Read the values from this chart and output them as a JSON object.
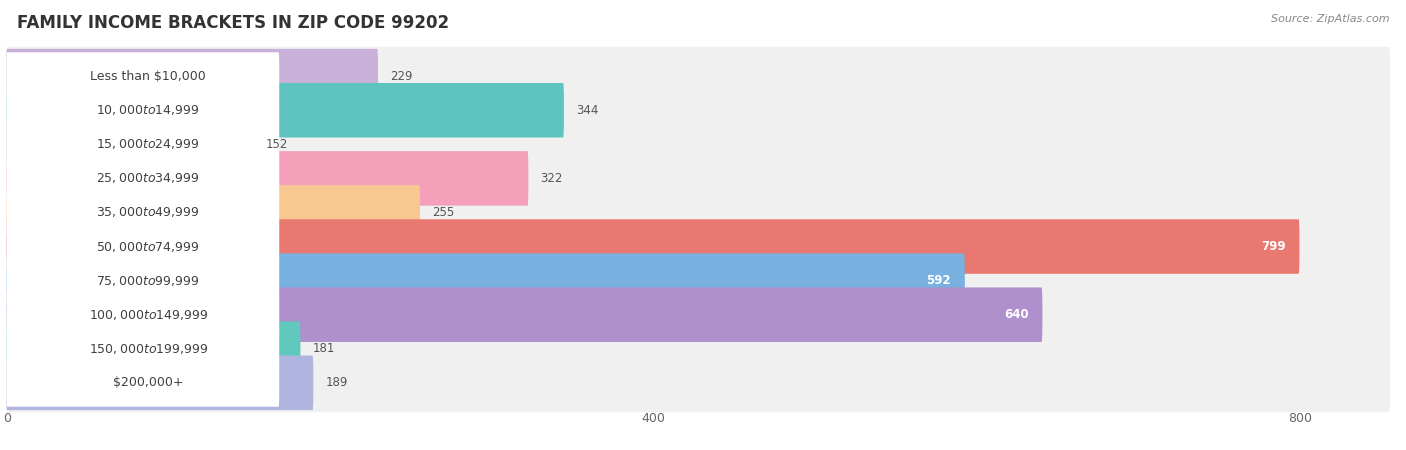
{
  "title": "FAMILY INCOME BRACKETS IN ZIP CODE 99202",
  "source": "Source: ZipAtlas.com",
  "categories": [
    "Less than $10,000",
    "$10,000 to $14,999",
    "$15,000 to $24,999",
    "$25,000 to $34,999",
    "$35,000 to $49,999",
    "$50,000 to $74,999",
    "$75,000 to $99,999",
    "$100,000 to $149,999",
    "$150,000 to $199,999",
    "$200,000+"
  ],
  "values": [
    229,
    344,
    152,
    322,
    255,
    799,
    592,
    640,
    181,
    189
  ],
  "bar_colors": [
    "#c9b0d8",
    "#5fc4bf",
    "#b0b5e0",
    "#f5a0bb",
    "#f9c890",
    "#e87870",
    "#78b0df",
    "#b090cc",
    "#60c8bc",
    "#b0b5e0"
  ],
  "xlim": [
    0,
    855
  ],
  "xticks": [
    0,
    400,
    800
  ],
  "background_color": "#ffffff",
  "bar_bg_color": "#eeeeee",
  "row_bg_color": "#f5f5f5",
  "title_fontsize": 12,
  "label_fontsize": 9,
  "value_fontsize": 8.5,
  "bar_height": 0.6,
  "value_threshold": 450
}
